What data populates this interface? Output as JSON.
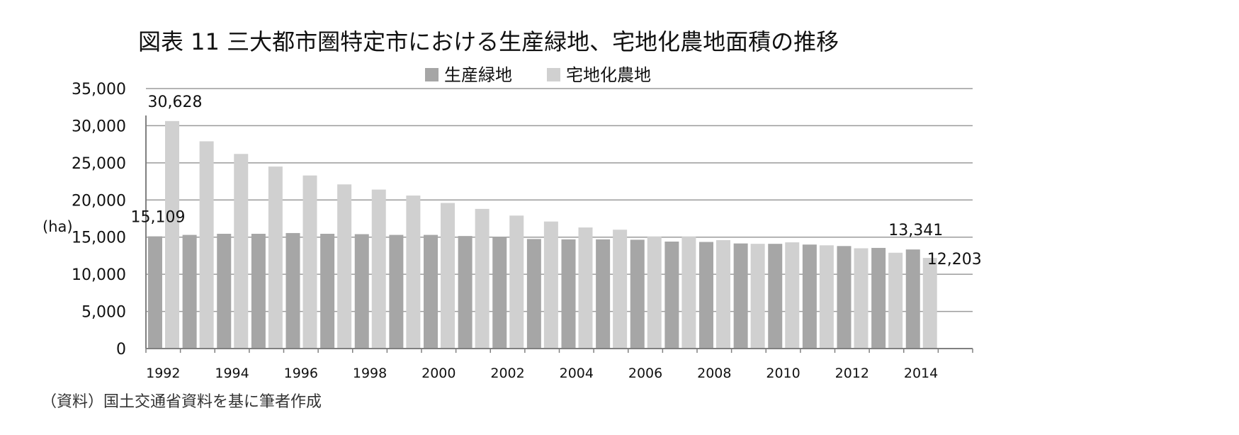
{
  "chart_data": {
    "type": "bar",
    "title": "図表 11  三大都市圏特定市における生産緑地、宅地化農地面積の推移",
    "ylabel": "(ha)",
    "xlabel": "",
    "ylim": [
      0,
      35000
    ],
    "yticks": [
      "0",
      "5,000",
      "10,000",
      "15,000",
      "20,000",
      "25,000",
      "30,000",
      "35,000"
    ],
    "ytick_values": [
      0,
      5000,
      10000,
      15000,
      20000,
      25000,
      30000,
      35000
    ],
    "grid": true,
    "legend_position": "top-center",
    "categories": [
      "1992",
      "1993",
      "1994",
      "1995",
      "1996",
      "1997",
      "1998",
      "1999",
      "2000",
      "2001",
      "2002",
      "2003",
      "2004",
      "2005",
      "2006",
      "2007",
      "2008",
      "2009",
      "2010",
      "2011",
      "2012",
      "2013",
      "2014"
    ],
    "xtick_labels": [
      "1992",
      "",
      "1994",
      "",
      "1996",
      "",
      "1998",
      "",
      "2000",
      "",
      "2002",
      "",
      "2004",
      "",
      "2006",
      "",
      "2008",
      "",
      "2010",
      "",
      "2012",
      "",
      "2014"
    ],
    "series": [
      {
        "name": "生産緑地",
        "color": "#a6a6a6",
        "values": [
          15109,
          15300,
          15450,
          15450,
          15550,
          15450,
          15400,
          15300,
          15300,
          15150,
          15050,
          14750,
          14700,
          14700,
          14650,
          14400,
          14350,
          14150,
          14100,
          14000,
          13800,
          13550,
          13341
        ]
      },
      {
        "name": "宅地化農地",
        "color": "#d0d0d0",
        "values": [
          30628,
          27900,
          26200,
          24500,
          23300,
          22100,
          21400,
          20600,
          19600,
          18800,
          17900,
          17100,
          16300,
          16000,
          15100,
          15100,
          14600,
          14100,
          14300,
          13900,
          13500,
          12900,
          12203
        ]
      }
    ],
    "data_labels": [
      {
        "text": "30,628",
        "series": 1,
        "index": 0,
        "placement": "above"
      },
      {
        "text": "15,109",
        "series": 0,
        "index": 0,
        "placement": "above"
      },
      {
        "text": "13,341",
        "series": 0,
        "index": 22,
        "placement": "above"
      },
      {
        "text": "12,203",
        "series": 1,
        "index": 22,
        "placement": "right"
      }
    ]
  },
  "source_note": "（資料）国土交通省資料を基に筆者作成"
}
